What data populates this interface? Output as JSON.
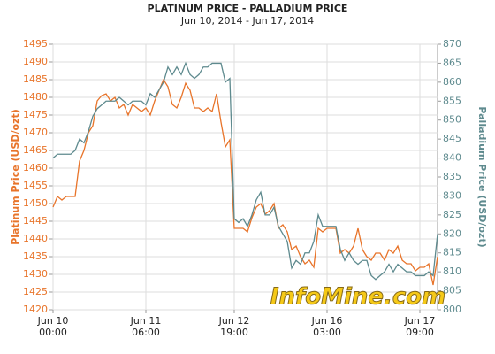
{
  "chart_data": {
    "type": "line",
    "title": "PLATINUM PRICE  -  PALLADIUM PRICE",
    "subtitle": "Jun 10, 2014 - Jun 17, 2014",
    "ylabel": "Platinum Price (USD/ozt)",
    "y2label": "Palladium Price (USD/ozt)",
    "watermark": "InfoMine.com",
    "grid": true,
    "x": [
      0,
      1,
      2,
      3,
      4,
      5,
      6,
      7,
      8,
      9,
      10,
      11,
      12,
      13,
      14,
      15,
      16,
      17,
      18,
      19,
      20,
      21,
      22,
      23,
      24,
      25,
      26,
      27,
      28,
      29,
      30,
      31,
      32,
      33,
      34,
      35,
      36,
      37,
      38,
      39,
      40,
      41,
      42,
      43,
      44,
      45,
      46,
      47,
      48,
      49,
      50,
      51,
      52,
      53,
      54,
      55,
      56,
      57,
      58,
      59,
      60,
      61,
      62,
      63,
      64,
      65,
      66,
      67,
      68,
      69,
      70,
      71,
      72,
      73,
      74,
      75,
      76,
      77,
      78,
      79,
      80,
      81,
      82,
      83,
      84,
      85,
      86,
      87
    ],
    "xlim": [
      0,
      87
    ],
    "xticks": [
      {
        "value": 0,
        "label": "Jun 10\n00:00"
      },
      {
        "value": 21,
        "label": "Jun 11\n06:00"
      },
      {
        "value": 41,
        "label": "Jun 12\n19:00"
      },
      {
        "value": 62,
        "label": "Jun 16\n03:00"
      },
      {
        "value": 83,
        "label": "Jun 17\n09:00"
      }
    ],
    "ylim": [
      1420,
      1495
    ],
    "yticks": [
      1420,
      1425,
      1430,
      1435,
      1440,
      1445,
      1450,
      1455,
      1460,
      1465,
      1470,
      1475,
      1480,
      1485,
      1490,
      1495
    ],
    "y2lim": [
      800,
      870
    ],
    "y2ticks": [
      800,
      805,
      810,
      815,
      820,
      825,
      830,
      835,
      840,
      845,
      850,
      855,
      860,
      865,
      870
    ],
    "series": [
      {
        "color": "#e8742a",
        "axis": "y",
        "values": [
          1449,
          1452,
          1451,
          1452,
          1452,
          1452,
          1462,
          1465,
          1470,
          1472,
          1479,
          1480.5,
          1481,
          1479,
          1480,
          1477,
          1478,
          1475,
          1478,
          1477,
          1476,
          1477,
          1475,
          1479,
          1482,
          1485,
          1483,
          1478,
          1477,
          1480,
          1484,
          1482,
          1477,
          1477,
          1476,
          1477,
          1476,
          1481,
          1473,
          1466,
          1468,
          1443,
          1443,
          1443,
          1442,
          1446,
          1449,
          1450,
          1447,
          1448,
          1450,
          1443,
          1444,
          1442,
          1437,
          1438,
          1435,
          1433,
          1434,
          1432,
          1443,
          1442,
          1443,
          1443,
          1443,
          1436,
          1437,
          1436,
          1438,
          1443,
          1437,
          1435,
          1434,
          1436,
          1436,
          1434,
          1437,
          1436,
          1438,
          1434,
          1433,
          1433,
          1431,
          1432,
          1432,
          1433,
          1427,
          1435
        ]
      },
      {
        "color": "#5e8a8e",
        "axis": "y2",
        "values": [
          840,
          841,
          841,
          841,
          841,
          842,
          845,
          844,
          847,
          851,
          853,
          854,
          855,
          855,
          855,
          856,
          855,
          854,
          855,
          855,
          855,
          854,
          857,
          856,
          858,
          860,
          864,
          862,
          864,
          862,
          865,
          862,
          861,
          862,
          864,
          864,
          865,
          865,
          865,
          860,
          861,
          824,
          823,
          824,
          822,
          825,
          829,
          831,
          825,
          825,
          827,
          822,
          820,
          818,
          811,
          813,
          812,
          815,
          815,
          818,
          825,
          822,
          822,
          822,
          822,
          816,
          813,
          815,
          813,
          812,
          813,
          813,
          809,
          808,
          809,
          810,
          812,
          810,
          812,
          811,
          810,
          810,
          809,
          809,
          809,
          810,
          809,
          820
        ]
      }
    ]
  }
}
